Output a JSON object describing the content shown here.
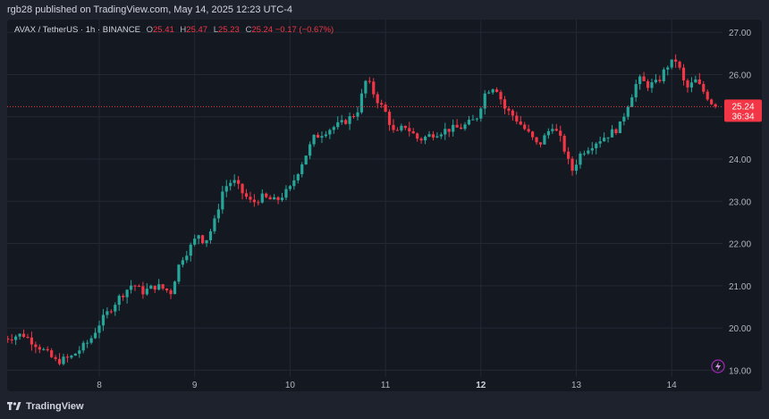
{
  "header": {
    "publish_text": "rgb28 published on TradingView.com, May 14, 2025 12:23 UTC-4"
  },
  "legend": {
    "symbol": "AVAX / TetherUS · 1h · BINANCE",
    "open_label": "O",
    "open": "25.41",
    "high_label": "H",
    "high": "25.47",
    "low_label": "L",
    "low": "25.23",
    "close_label": "C",
    "close": "25.24",
    "change": "−0.17 (−0.67%)"
  },
  "price_tag": {
    "price": "25.24",
    "countdown": "36:34"
  },
  "footer": {
    "brand": "TradingView"
  },
  "colors": {
    "up": "#26a69a",
    "down": "#f23645",
    "background": "#141821",
    "grid": "#242833",
    "text": "#b2b5be"
  },
  "chart_data": {
    "type": "candlestick",
    "title": "AVAX / TetherUS · 1h · BINANCE",
    "ylim": [
      18.5,
      27.3
    ],
    "y_ticks": [
      19.0,
      20.0,
      21.0,
      22.0,
      23.0,
      24.0,
      25.0,
      26.0,
      27.0
    ],
    "y_tick_labels": [
      "19.00",
      "20.00",
      "21.00",
      "22.00",
      "23.00",
      "24.00",
      "25.00",
      "26.00",
      "27.00"
    ],
    "x_ticks": [
      {
        "label": "8",
        "day": 8,
        "bold": false
      },
      {
        "label": "9",
        "day": 9,
        "bold": false
      },
      {
        "label": "10",
        "day": 10,
        "bold": false
      },
      {
        "label": "11",
        "day": 11,
        "bold": false
      },
      {
        "label": "12",
        "day": 12,
        "bold": true
      },
      {
        "label": "13",
        "day": 13,
        "bold": false
      },
      {
        "label": "14",
        "day": 14,
        "bold": false
      }
    ],
    "last_price": 25.24,
    "grid": true,
    "path": [
      [
        7.0,
        19.75
      ],
      [
        7.2,
        19.85
      ],
      [
        7.4,
        19.5
      ],
      [
        7.55,
        19.2
      ],
      [
        7.7,
        19.3
      ],
      [
        7.9,
        19.7
      ],
      [
        8.0,
        20.1
      ],
      [
        8.2,
        20.7
      ],
      [
        8.35,
        21.05
      ],
      [
        8.45,
        20.85
      ],
      [
        8.6,
        21.0
      ],
      [
        8.75,
        20.85
      ],
      [
        8.85,
        21.6
      ],
      [
        8.95,
        21.9
      ],
      [
        9.05,
        22.25
      ],
      [
        9.1,
        22.0
      ],
      [
        9.2,
        22.45
      ],
      [
        9.3,
        23.3
      ],
      [
        9.4,
        23.5
      ],
      [
        9.5,
        23.2
      ],
      [
        9.6,
        22.95
      ],
      [
        9.7,
        23.1
      ],
      [
        9.85,
        23.0
      ],
      [
        10.0,
        23.3
      ],
      [
        10.1,
        23.8
      ],
      [
        10.25,
        24.5
      ],
      [
        10.4,
        24.7
      ],
      [
        10.55,
        24.85
      ],
      [
        10.7,
        25.1
      ],
      [
        10.8,
        25.9
      ],
      [
        10.9,
        25.45
      ],
      [
        11.0,
        25.1
      ],
      [
        11.1,
        24.55
      ],
      [
        11.2,
        24.8
      ],
      [
        11.35,
        24.45
      ],
      [
        11.5,
        24.6
      ],
      [
        11.65,
        24.7
      ],
      [
        11.8,
        24.75
      ],
      [
        11.95,
        24.95
      ],
      [
        12.05,
        25.6
      ],
      [
        12.15,
        25.75
      ],
      [
        12.25,
        25.2
      ],
      [
        12.35,
        25.0
      ],
      [
        12.5,
        24.6
      ],
      [
        12.6,
        24.3
      ],
      [
        12.75,
        24.8
      ],
      [
        12.85,
        24.4
      ],
      [
        12.95,
        23.7
      ],
      [
        13.05,
        24.15
      ],
      [
        13.2,
        24.4
      ],
      [
        13.35,
        24.6
      ],
      [
        13.45,
        24.75
      ],
      [
        13.55,
        25.35
      ],
      [
        13.65,
        25.9
      ],
      [
        13.75,
        25.75
      ],
      [
        13.85,
        25.8
      ],
      [
        13.95,
        26.2
      ],
      [
        14.05,
        26.35
      ],
      [
        14.15,
        25.65
      ],
      [
        14.25,
        25.85
      ],
      [
        14.35,
        25.55
      ],
      [
        14.45,
        25.24
      ]
    ]
  }
}
